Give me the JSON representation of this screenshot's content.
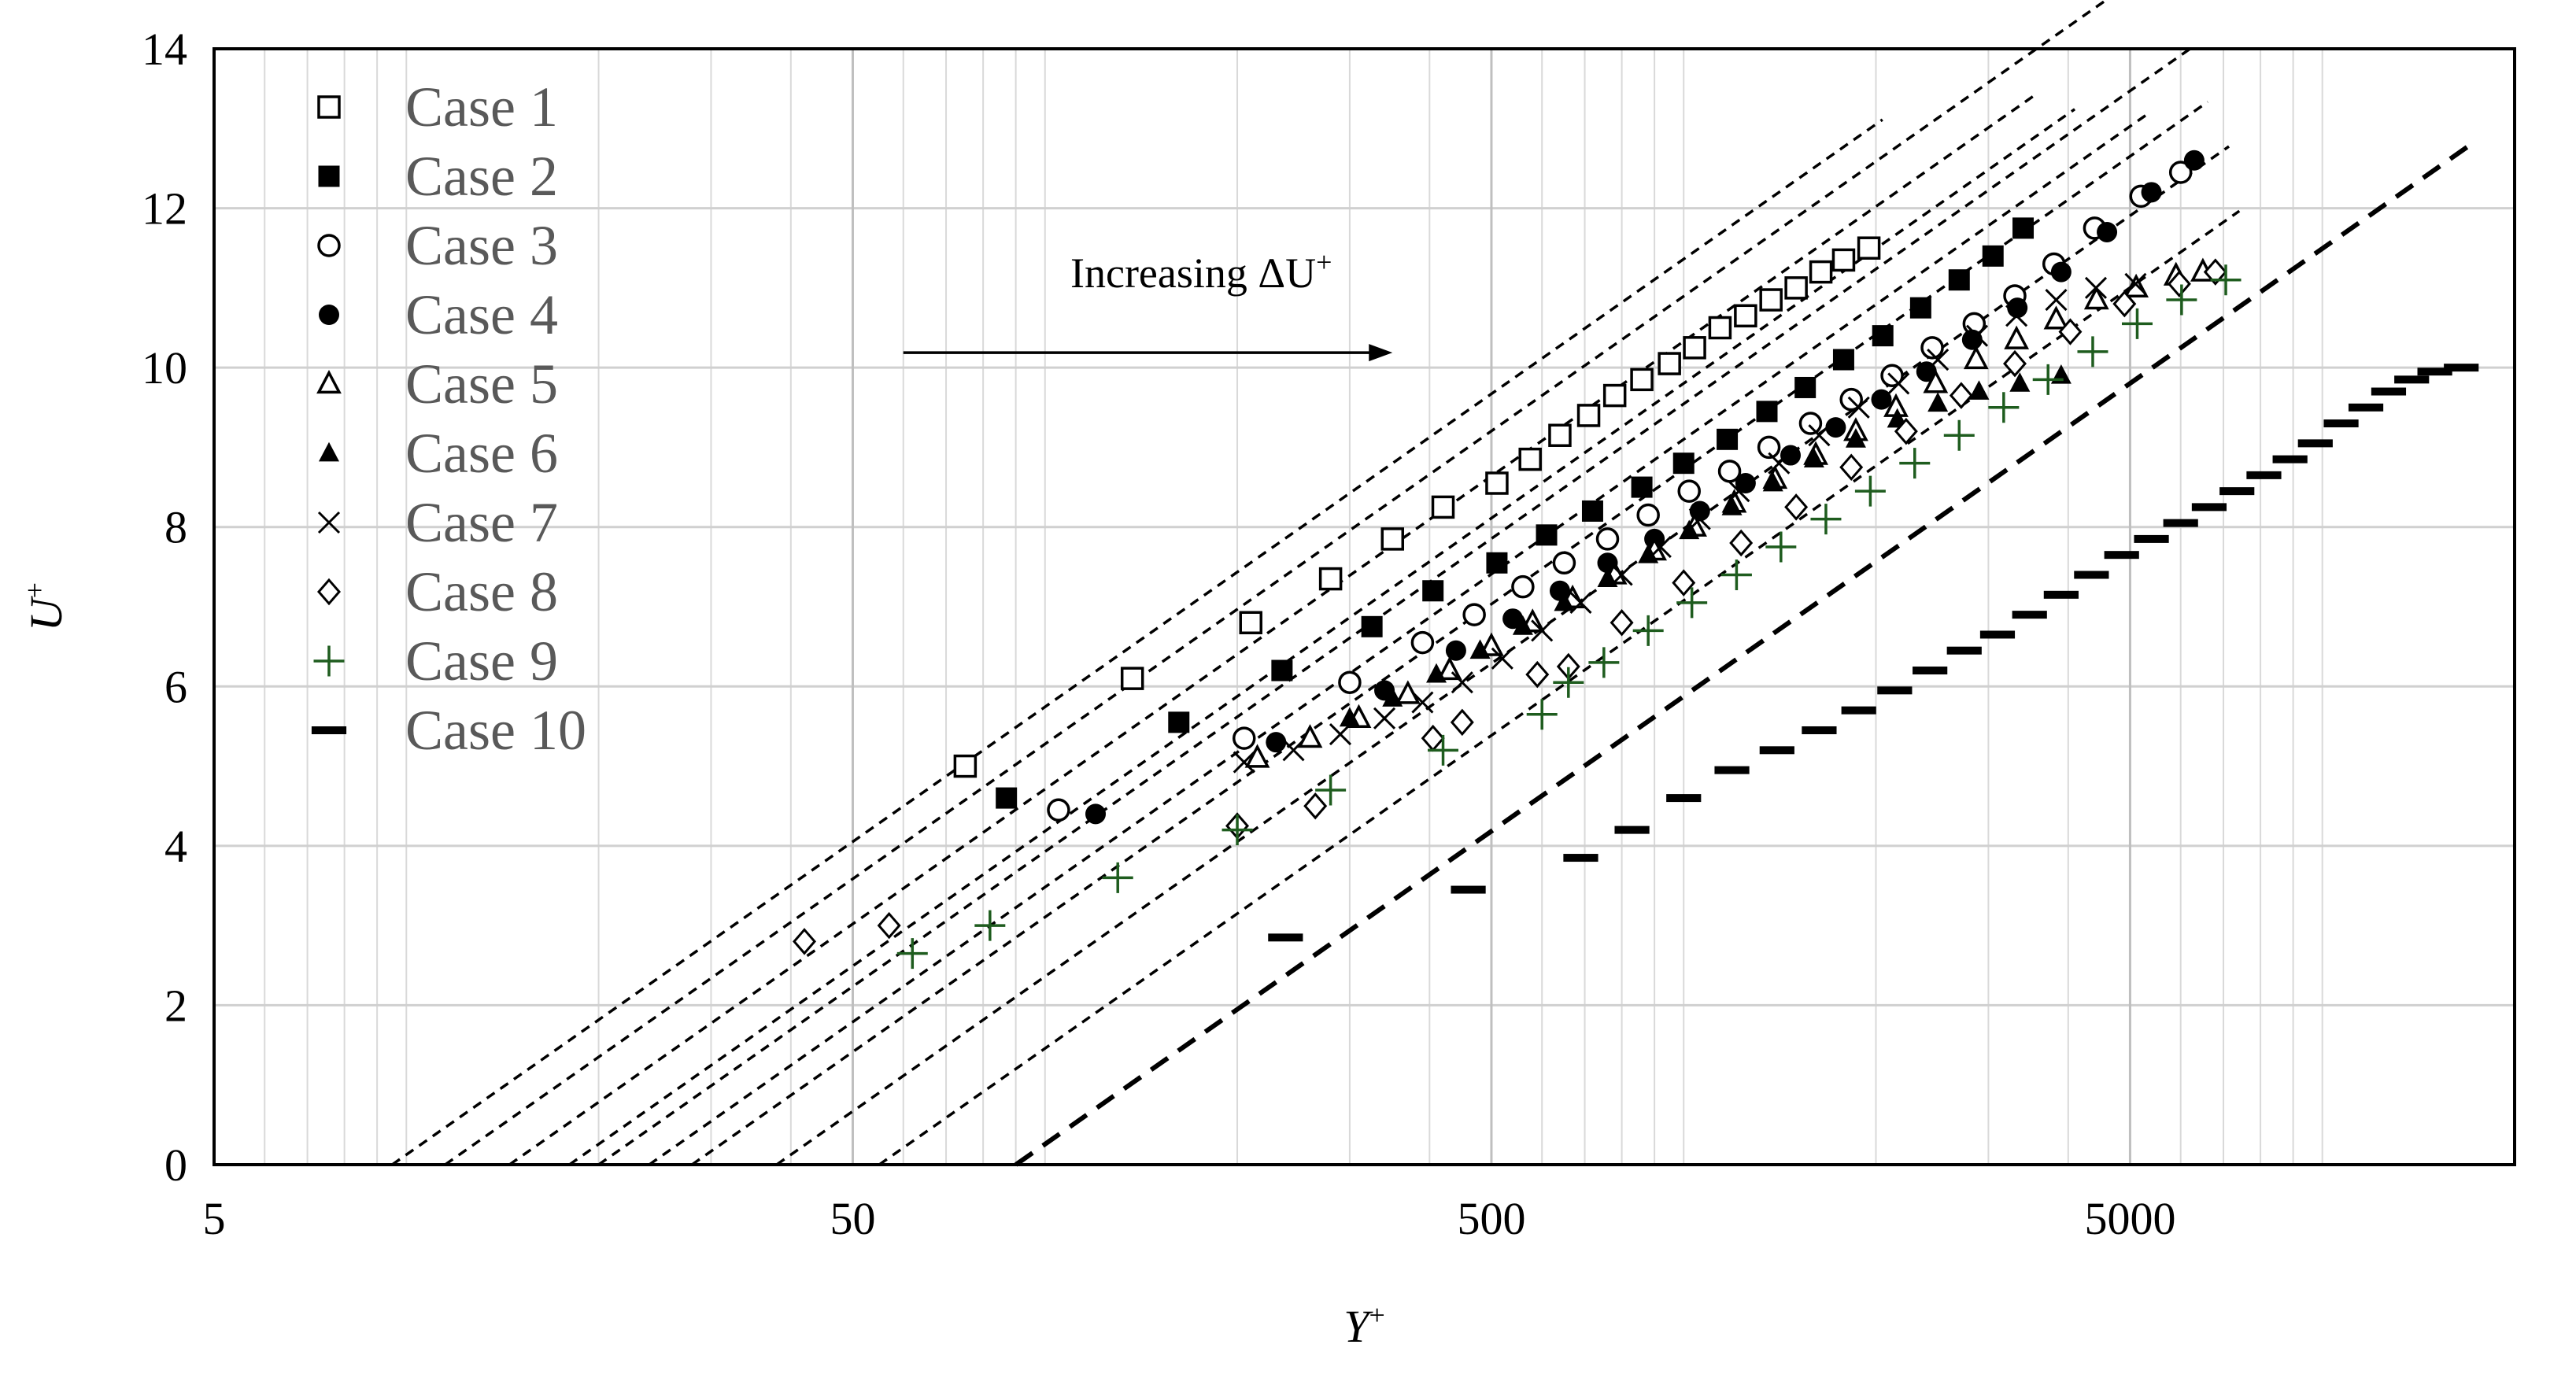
{
  "chart_data": {
    "type": "scatter",
    "x_scale": "log",
    "xlim": [
      5,
      20000
    ],
    "ylim": [
      0,
      14
    ],
    "x_ticks": [
      "5",
      "50",
      "500",
      "5000"
    ],
    "x_tick_values": [
      5,
      50,
      500,
      5000
    ],
    "y_ticks": [
      "0",
      "2",
      "4",
      "6",
      "8",
      "10",
      "12",
      "14"
    ],
    "y_tick_values": [
      0,
      2,
      4,
      6,
      8,
      10,
      12,
      14
    ],
    "xlabel": "Y",
    "xlabel_sup": "+",
    "ylabel": "U",
    "ylabel_sup": "+",
    "grid": "major and minor",
    "legend_position": "top-left",
    "annotation": {
      "text": "Increasing ΔU",
      "sup": "+",
      "arrow_from": [
        60,
        10.8
      ],
      "arrow_to": [
        350,
        10.8
      ]
    },
    "fit_line_slope": 2.44,
    "series": [
      {
        "name": "Case 1",
        "marker": "square-open",
        "color": "#000000",
        "fit_x0": 9.5,
        "x": [
          75,
          137,
          210,
          280,
          350,
          420,
          510,
          575,
          640,
          710,
          780,
          860,
          950,
          1040,
          1140,
          1250,
          1370,
          1500,
          1640,
          1780,
          1950
        ],
        "y": [
          5.0,
          6.1,
          6.8,
          7.35,
          7.85,
          8.25,
          8.55,
          8.85,
          9.15,
          9.4,
          9.65,
          9.85,
          10.05,
          10.25,
          10.5,
          10.65,
          10.85,
          11.0,
          11.2,
          11.35,
          11.5
        ]
      },
      {
        "name": "Case 2",
        "marker": "square-filled",
        "color": "#000000",
        "fit_x0": 14.5,
        "x": [
          87,
          162,
          235,
          325,
          405,
          510,
          610,
          720,
          860,
          1000,
          1170,
          1350,
          1550,
          1780,
          2050,
          2350,
          2700,
          3050,
          3400
        ],
        "y": [
          4.6,
          5.55,
          6.2,
          6.75,
          7.2,
          7.55,
          7.9,
          8.2,
          8.5,
          8.8,
          9.1,
          9.45,
          9.75,
          10.1,
          10.4,
          10.75,
          11.1,
          11.4,
          11.75
        ]
      },
      {
        "name": "Case 3",
        "marker": "circle-open",
        "color": "#000000",
        "fit_x0": 20,
        "x": [
          105,
          205,
          300,
          390,
          470,
          560,
          650,
          760,
          880,
          1020,
          1180,
          1360,
          1580,
          1830,
          2120,
          2450,
          2850,
          3300,
          3800,
          4400,
          5200,
          6000
        ],
        "y": [
          4.45,
          5.35,
          6.05,
          6.55,
          6.9,
          7.25,
          7.55,
          7.85,
          8.15,
          8.45,
          8.7,
          9.0,
          9.3,
          9.6,
          9.9,
          10.25,
          10.55,
          10.9,
          11.3,
          11.75,
          12.15,
          12.45
        ]
      },
      {
        "name": "Case 4",
        "marker": "circle-filled",
        "color": "#000000",
        "fit_x0": 28,
        "x": [
          120,
          230,
          340,
          440,
          540,
          640,
          760,
          900,
          1060,
          1250,
          1470,
          1730,
          2040,
          2400,
          2830,
          3330,
          3900,
          4600,
          5400,
          6300
        ],
        "y": [
          4.4,
          5.3,
          5.95,
          6.45,
          6.85,
          7.2,
          7.55,
          7.85,
          8.2,
          8.55,
          8.9,
          9.25,
          9.6,
          9.95,
          10.35,
          10.75,
          11.2,
          11.7,
          12.2,
          12.6
        ]
      },
      {
        "name": "Case 5",
        "marker": "triangle-open",
        "color": "#000000",
        "fit_x0": 11.5,
        "x": [
          215,
          260,
          310,
          370,
          430,
          500,
          580,
          670,
          780,
          900,
          1040,
          1200,
          1390,
          1610,
          1860,
          2150,
          2480,
          2870,
          3320,
          3830,
          4430,
          5110,
          5900,
          6500
        ],
        "y": [
          5.1,
          5.35,
          5.6,
          5.9,
          6.2,
          6.5,
          6.8,
          7.1,
          7.4,
          7.7,
          8.0,
          8.3,
          8.6,
          8.9,
          9.2,
          9.5,
          9.8,
          10.1,
          10.35,
          10.6,
          10.85,
          11.0,
          11.15,
          11.2
        ]
      },
      {
        "name": "Case 6",
        "marker": "triangle-filled",
        "color": "#000000",
        "fit_x0": 18,
        "x": [
          300,
          350,
          410,
          480,
          560,
          650,
          760,
          880,
          1020,
          1190,
          1380,
          1600,
          1860,
          2160,
          2500,
          2900,
          3360,
          3900
        ],
        "y": [
          5.6,
          5.85,
          6.15,
          6.45,
          6.75,
          7.05,
          7.35,
          7.65,
          7.95,
          8.25,
          8.55,
          8.85,
          9.1,
          9.35,
          9.55,
          9.7,
          9.8,
          9.9
        ]
      },
      {
        "name": "Case 7",
        "marker": "x",
        "color": "#000000",
        "fit_x0": 24,
        "x": [
          205,
          245,
          290,
          340,
          390,
          450,
          520,
          600,
          690,
          800,
          920,
          1060,
          1220,
          1410,
          1630,
          1880,
          2170,
          2500,
          2880,
          3320,
          3830,
          4420,
          5100
        ],
        "y": [
          5.05,
          5.2,
          5.4,
          5.6,
          5.8,
          6.05,
          6.35,
          6.7,
          7.05,
          7.4,
          7.75,
          8.1,
          8.45,
          8.8,
          9.15,
          9.5,
          9.8,
          10.1,
          10.4,
          10.65,
          10.85,
          11.0,
          11.05
        ]
      },
      {
        "name": "Case 8",
        "marker": "diamond-open",
        "color": "#000000",
        "fit_x0": 38,
        "x": [
          42,
          57,
          200,
          265,
          405,
          450,
          590,
          660,
          800,
          1000,
          1230,
          1500,
          1830,
          2230,
          2720,
          3300,
          4030,
          4900,
          5970,
          6800
        ],
        "y": [
          2.8,
          3.0,
          4.25,
          4.5,
          5.35,
          5.55,
          6.15,
          6.25,
          6.8,
          7.3,
          7.8,
          8.25,
          8.75,
          9.2,
          9.65,
          10.05,
          10.45,
          10.8,
          11.05,
          11.2
        ]
      },
      {
        "name": "Case 9",
        "marker": "plus",
        "color": "#1e5c1e",
        "fit_x0": 55,
        "x": [
          62,
          82,
          130,
          200,
          280,
          420,
          600,
          660,
          750,
          880,
          1030,
          1210,
          1420,
          1670,
          1960,
          2300,
          2700,
          3170,
          3720,
          4370,
          5130,
          6020,
          7060
        ],
        "y": [
          2.65,
          3.0,
          3.6,
          4.2,
          4.7,
          5.2,
          5.65,
          6.05,
          6.3,
          6.7,
          7.05,
          7.4,
          7.75,
          8.1,
          8.45,
          8.8,
          9.15,
          9.5,
          9.85,
          10.2,
          10.55,
          10.85,
          11.1
        ]
      },
      {
        "name": "Case 10",
        "marker": "dash",
        "color": "#000000",
        "fit_x0": 90,
        "x": [
          238,
          460,
          690,
          830,
          1000,
          1190,
          1400,
          1630,
          1880,
          2140,
          2430,
          2750,
          3100,
          3480,
          3900,
          4350,
          4850,
          5400,
          6000,
          6650,
          7350,
          8100,
          8900,
          9750,
          10700,
          11700,
          12700,
          13800,
          15000,
          16500
        ],
        "y": [
          2.85,
          3.45,
          3.85,
          4.2,
          4.6,
          4.95,
          5.2,
          5.45,
          5.7,
          5.95,
          6.2,
          6.45,
          6.65,
          6.9,
          7.15,
          7.4,
          7.65,
          7.85,
          8.05,
          8.25,
          8.45,
          8.65,
          8.85,
          9.05,
          9.3,
          9.5,
          9.7,
          9.85,
          9.95,
          10.0
        ]
      }
    ]
  }
}
